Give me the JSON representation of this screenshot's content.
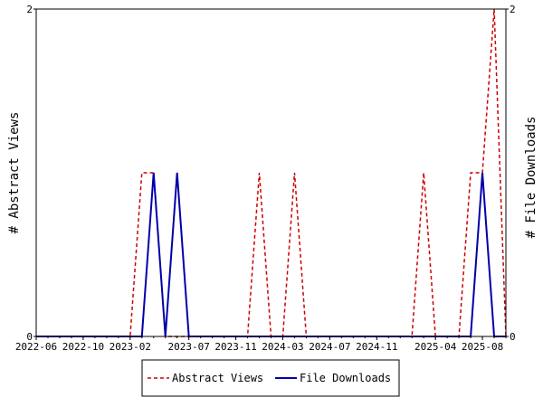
{
  "chart_data": {
    "type": "line",
    "title": "",
    "ylabel_left": "# Abstract Views",
    "ylabel_right": "# File Downloads",
    "ylim_left": [
      0,
      2
    ],
    "ylim_right": [
      0,
      2
    ],
    "y_ticks_left": [
      "0",
      "2"
    ],
    "y_ticks_right": [
      "0",
      "2"
    ],
    "x_ticks": [
      "2022-06",
      "2022-10",
      "2023-02",
      "2023-07",
      "2023-11",
      "2024-03",
      "2024-07",
      "2024-11",
      "2025-04",
      "2025-08"
    ],
    "x": [
      "2022-06",
      "2022-07",
      "2022-08",
      "2022-09",
      "2022-10",
      "2022-11",
      "2022-12",
      "2023-01",
      "2023-02",
      "2023-03",
      "2023-04",
      "2023-05",
      "2023-06",
      "2023-07",
      "2023-08",
      "2023-09",
      "2023-10",
      "2023-11",
      "2023-12",
      "2024-01",
      "2024-02",
      "2024-03",
      "2024-04",
      "2024-05",
      "2024-06",
      "2024-07",
      "2024-08",
      "2024-09",
      "2024-10",
      "2024-11",
      "2024-12",
      "2025-01",
      "2025-02",
      "2025-03",
      "2025-04",
      "2025-05",
      "2025-06",
      "2025-07",
      "2025-08",
      "2025-09",
      "2025-10"
    ],
    "series": [
      {
        "name": "Abstract Views",
        "color": "#cc0000",
        "dash": true,
        "axis": "left",
        "values": [
          0,
          0,
          0,
          0,
          0,
          0,
          0,
          0,
          0,
          1,
          1,
          0,
          0,
          0,
          0,
          0,
          0,
          0,
          0,
          1,
          0,
          0,
          1,
          0,
          0,
          0,
          0,
          0,
          0,
          0,
          0,
          0,
          0,
          1,
          0,
          0,
          0,
          1,
          1,
          2,
          0
        ]
      },
      {
        "name": "File Downloads",
        "color": "#0000aa",
        "dash": false,
        "axis": "right",
        "values": [
          0,
          0,
          0,
          0,
          0,
          0,
          0,
          0,
          0,
          0,
          1,
          0,
          1,
          0,
          0,
          0,
          0,
          0,
          0,
          0,
          0,
          0,
          0,
          0,
          0,
          0,
          0,
          0,
          0,
          0,
          0,
          0,
          0,
          0,
          0,
          0,
          0,
          0,
          1,
          0,
          0
        ]
      }
    ],
    "grid": false,
    "legend_position": "bottom-center"
  }
}
